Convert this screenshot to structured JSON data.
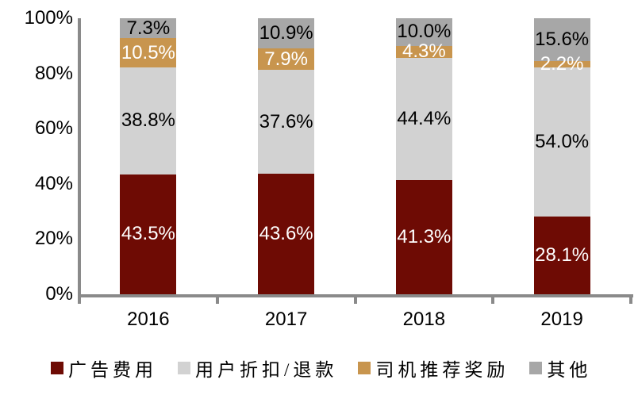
{
  "chart_data": {
    "type": "bar",
    "variant": "100-percent-stacked-column",
    "title": "",
    "xlabel": "",
    "ylabel": "",
    "categories": [
      "2016",
      "2017",
      "2018",
      "2019"
    ],
    "series": [
      {
        "name": "广告费用",
        "color": "#6e0b04",
        "label_color": "#ffffff",
        "values": [
          43.5,
          43.6,
          41.3,
          28.1
        ]
      },
      {
        "name": "用户折扣/退款",
        "color": "#d2d2d2",
        "label_color": "#000000",
        "values": [
          38.8,
          37.6,
          44.4,
          54.0
        ]
      },
      {
        "name": "司机推荐奖励",
        "color": "#c8954e",
        "label_color": "#ffffff",
        "values": [
          10.5,
          7.9,
          4.3,
          2.2
        ]
      },
      {
        "name": "其他",
        "color": "#a7a7a7",
        "label_color": "#000000",
        "values": [
          7.3,
          10.9,
          10.0,
          15.6
        ]
      }
    ],
    "y_axis": {
      "ticks": [
        "100%",
        "80%",
        "60%",
        "40%",
        "20%",
        "0%"
      ],
      "min": 0,
      "max": 100
    },
    "data_label_format": "one-decimal-percent",
    "grid": false,
    "legend_position": "bottom",
    "axis_color": "#8a8a8a"
  }
}
